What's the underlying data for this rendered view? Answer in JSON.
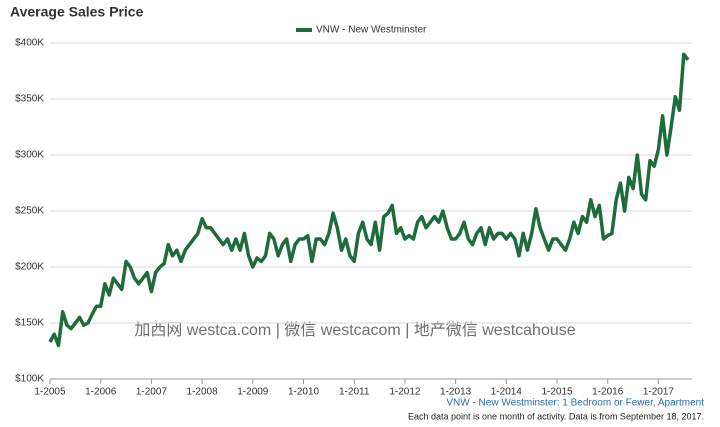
{
  "chart_data": {
    "type": "line",
    "title": "Average Sales Price",
    "categories": [
      "1-2005",
      null,
      null,
      null,
      null,
      null,
      null,
      null,
      null,
      null,
      null,
      null,
      "1-2006",
      null,
      null,
      null,
      null,
      null,
      null,
      null,
      null,
      null,
      null,
      null,
      "1-2007",
      null,
      null,
      null,
      null,
      null,
      null,
      null,
      null,
      null,
      null,
      null,
      "1-2008",
      null,
      null,
      null,
      null,
      null,
      null,
      null,
      null,
      null,
      null,
      null,
      "1-2009",
      null,
      null,
      null,
      null,
      null,
      null,
      null,
      null,
      null,
      null,
      null,
      "1-2010",
      null,
      null,
      null,
      null,
      null,
      null,
      null,
      null,
      null,
      null,
      null,
      "1-2011",
      null,
      null,
      null,
      null,
      null,
      null,
      null,
      null,
      null,
      null,
      null,
      "1-2012",
      null,
      null,
      null,
      null,
      null,
      null,
      null,
      null,
      null,
      null,
      null,
      "1-2013",
      null,
      null,
      null,
      null,
      null,
      null,
      null,
      null,
      null,
      null,
      null,
      "1-2014",
      null,
      null,
      null,
      null,
      null,
      null,
      null,
      null,
      null,
      null,
      null,
      "1-2015",
      null,
      null,
      null,
      null,
      null,
      null,
      null,
      null,
      null,
      null,
      null,
      "1-2016",
      null,
      null,
      null,
      null,
      null,
      null,
      null,
      null,
      null,
      null,
      null,
      "1-2017",
      null,
      null,
      null,
      null,
      null,
      null,
      null
    ],
    "series": [
      {
        "name": "VNW - New Westminster",
        "color": "#1e6b3c",
        "values": [
          133,
          140,
          130,
          160,
          148,
          145,
          150,
          155,
          148,
          150,
          158,
          165,
          165,
          185,
          175,
          190,
          185,
          180,
          205,
          200,
          190,
          185,
          190,
          195,
          178,
          195,
          200,
          203,
          220,
          210,
          215,
          205,
          215,
          220,
          225,
          230,
          243,
          235,
          235,
          230,
          225,
          220,
          225,
          215,
          225,
          215,
          230,
          210,
          200,
          208,
          205,
          210,
          230,
          225,
          210,
          220,
          225,
          205,
          220,
          225,
          225,
          228,
          205,
          225,
          225,
          220,
          230,
          248,
          235,
          215,
          225,
          210,
          205,
          230,
          240,
          225,
          220,
          240,
          215,
          245,
          248,
          255,
          230,
          235,
          225,
          228,
          225,
          240,
          245,
          235,
          240,
          245,
          240,
          250,
          235,
          225,
          225,
          230,
          240,
          225,
          220,
          230,
          235,
          220,
          235,
          225,
          230,
          230,
          225,
          230,
          225,
          210,
          230,
          215,
          230,
          252,
          235,
          225,
          215,
          225,
          225,
          220,
          215,
          225,
          240,
          230,
          245,
          240,
          260,
          245,
          255,
          225,
          228,
          230,
          260,
          275,
          250,
          280,
          270,
          300,
          265,
          260,
          295,
          290,
          305,
          335,
          300,
          325,
          352,
          340,
          390,
          385
        ]
      }
    ],
    "ylim": [
      100,
      400
    ],
    "yticks": [
      {
        "value": 100,
        "label": "$100K"
      },
      {
        "value": 150,
        "label": "$150K"
      },
      {
        "value": 200,
        "label": "$200K"
      },
      {
        "value": 250,
        "label": "$250K"
      },
      {
        "value": 300,
        "label": "$300K"
      },
      {
        "value": 350,
        "label": "$350K"
      },
      {
        "value": 400,
        "label": "$400K"
      }
    ],
    "grid": true,
    "legend": "top",
    "annotations": [
      "VNW - New Westminster: 1 Bedroom or Fewer, Apartment",
      "Each data point is one month of activity. Data is from September 18, 2017."
    ],
    "watermark": "加西网 westca.com | 微信 westcacom | 地产微信 westcahouse"
  }
}
